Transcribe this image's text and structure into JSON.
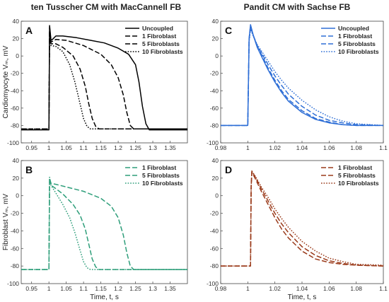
{
  "titles": {
    "left": "ten Tusscher CM with MacCannell FB",
    "right": "Pandit CM with Sachse FB"
  },
  "chart_data": [
    {
      "panel": "A",
      "type": "line",
      "ylabel": "Cardiomyocyte Vₘ, mV",
      "xlabel": "",
      "xlim": [
        0.92,
        1.4
      ],
      "ylim": [
        -100,
        40
      ],
      "xticks": [
        0.95,
        1,
        1.05,
        1.1,
        1.15,
        1.2,
        1.25,
        1.3,
        1.35
      ],
      "xtick_labels": [
        "0.95",
        "1",
        "1.05",
        "1.1",
        "1.15",
        "1.2",
        "1.25",
        "1.3",
        "1.35"
      ],
      "yticks": [
        -100,
        -80,
        -60,
        -40,
        -20,
        0,
        20,
        40
      ],
      "color": "#000000",
      "legend_position": "top-right",
      "series": [
        {
          "name": "Uncoupled",
          "dash": "solid",
          "x": [
            0.92,
            1.0,
            1.002,
            1.006,
            1.01,
            1.02,
            1.04,
            1.08,
            1.12,
            1.16,
            1.2,
            1.23,
            1.25,
            1.26,
            1.27,
            1.28,
            1.29,
            1.4
          ],
          "y": [
            -85,
            -85,
            35,
            18,
            19,
            23,
            23,
            21,
            18,
            15,
            9,
            2,
            -10,
            -30,
            -58,
            -78,
            -85,
            -85
          ]
        },
        {
          "name": "1 Fibroblast",
          "dash": "dashed",
          "x": [
            0.92,
            1.0,
            1.002,
            1.006,
            1.02,
            1.05,
            1.1,
            1.15,
            1.18,
            1.2,
            1.215,
            1.225,
            1.235,
            1.245,
            1.4
          ],
          "y": [
            -84,
            -84,
            33,
            16,
            19,
            18,
            12,
            2,
            -10,
            -25,
            -45,
            -65,
            -80,
            -84,
            -84
          ]
        },
        {
          "name": "5 Fibroblasts",
          "dash": "dashed",
          "x": [
            0.92,
            1.0,
            1.002,
            1.006,
            1.02,
            1.04,
            1.07,
            1.09,
            1.105,
            1.115,
            1.125,
            1.135,
            1.145,
            1.4
          ],
          "y": [
            -84,
            -84,
            28,
            14,
            14,
            10,
            0,
            -15,
            -35,
            -55,
            -72,
            -81,
            -84,
            -84
          ]
        },
        {
          "name": "10 Fibroblasts",
          "dash": "dotted",
          "x": [
            0.92,
            1.0,
            1.002,
            1.006,
            1.02,
            1.04,
            1.06,
            1.075,
            1.09,
            1.1,
            1.11,
            1.12,
            1.4
          ],
          "y": [
            -84,
            -84,
            26,
            12,
            11,
            5,
            -10,
            -30,
            -55,
            -72,
            -81,
            -84,
            -84
          ]
        }
      ]
    },
    {
      "panel": "B",
      "type": "line",
      "ylabel": "Fibroblast Vₘ, mV",
      "xlabel": "Time, t, s",
      "xlim": [
        0.92,
        1.4
      ],
      "ylim": [
        -100,
        40
      ],
      "xticks": [
        0.95,
        1,
        1.05,
        1.1,
        1.15,
        1.2,
        1.25,
        1.3,
        1.35
      ],
      "xtick_labels": [
        "0.95",
        "1",
        "1.05",
        "1.1",
        "1.15",
        "1.2",
        "1.25",
        "1.3",
        "1.35"
      ],
      "yticks": [
        -100,
        -80,
        -60,
        -40,
        -20,
        0,
        20,
        40
      ],
      "color": "#2e9e7a",
      "legend_position": "top-right",
      "series": [
        {
          "name": "1 Fibroblast",
          "dash": "dashed",
          "x": [
            0.92,
            1.0,
            1.002,
            1.006,
            1.02,
            1.05,
            1.1,
            1.15,
            1.18,
            1.2,
            1.215,
            1.225,
            1.235,
            1.245,
            1.4
          ],
          "y": [
            -84,
            -84,
            20,
            14,
            13,
            10,
            5,
            -3,
            -12,
            -25,
            -45,
            -65,
            -80,
            -84,
            -84
          ]
        },
        {
          "name": "5 Fibroblasts",
          "dash": "dashed",
          "x": [
            0.92,
            1.0,
            1.002,
            1.006,
            1.02,
            1.04,
            1.07,
            1.09,
            1.105,
            1.115,
            1.125,
            1.135,
            1.145,
            1.4
          ],
          "y": [
            -84,
            -84,
            20,
            12,
            8,
            2,
            -10,
            -22,
            -38,
            -55,
            -72,
            -81,
            -84,
            -84
          ]
        },
        {
          "name": "10 Fibroblasts",
          "dash": "dotted",
          "x": [
            0.92,
            1.0,
            1.002,
            1.006,
            1.02,
            1.04,
            1.06,
            1.075,
            1.09,
            1.1,
            1.11,
            1.12,
            1.4
          ],
          "y": [
            -84,
            -84,
            21,
            12,
            3,
            -10,
            -25,
            -42,
            -62,
            -75,
            -82,
            -84,
            -84
          ]
        }
      ]
    },
    {
      "panel": "C",
      "type": "line",
      "ylabel": "",
      "xlabel": "",
      "xlim": [
        0.98,
        1.1
      ],
      "ylim": [
        -100,
        40
      ],
      "xticks": [
        0.98,
        1,
        1.02,
        1.04,
        1.06,
        1.08,
        1.1
      ],
      "xtick_labels": [
        "0.98",
        "1",
        "1.02",
        "1.04",
        "1.06",
        "1.08",
        "1.1"
      ],
      "yticks": [
        -100,
        -80,
        -60,
        -40,
        -20,
        0,
        20,
        40
      ],
      "color": "#2f6fd6",
      "legend_position": "top-right",
      "series": [
        {
          "name": "Uncoupled",
          "dash": "solid",
          "x": [
            0.98,
            1.0,
            1.001,
            1.002,
            1.004,
            1.007,
            1.01,
            1.015,
            1.02,
            1.025,
            1.03,
            1.04,
            1.05,
            1.06,
            1.07,
            1.08,
            1.1
          ],
          "y": [
            -80,
            -80,
            20,
            36,
            24,
            10,
            0,
            -16,
            -30,
            -42,
            -52,
            -65,
            -73,
            -77,
            -79,
            -80,
            -80
          ]
        },
        {
          "name": "1 Fibroblast",
          "dash": "dashed",
          "x": [
            0.98,
            1.0,
            1.001,
            1.002,
            1.004,
            1.007,
            1.01,
            1.015,
            1.02,
            1.025,
            1.03,
            1.04,
            1.05,
            1.06,
            1.07,
            1.08,
            1.1
          ],
          "y": [
            -80,
            -80,
            20,
            35,
            24,
            11,
            2,
            -14,
            -28,
            -40,
            -50,
            -63,
            -72,
            -76,
            -79,
            -80,
            -80
          ]
        },
        {
          "name": "5 Fibroblasts",
          "dash": "dashed",
          "x": [
            0.98,
            1.0,
            1.001,
            1.002,
            1.004,
            1.007,
            1.01,
            1.015,
            1.02,
            1.025,
            1.03,
            1.04,
            1.05,
            1.06,
            1.07,
            1.08,
            1.1
          ],
          "y": [
            -80,
            -80,
            18,
            33,
            24,
            12,
            4,
            -10,
            -23,
            -34,
            -44,
            -58,
            -68,
            -74,
            -77,
            -79,
            -80
          ]
        },
        {
          "name": "10 Fibroblasts",
          "dash": "dotted",
          "x": [
            0.98,
            1.0,
            1.001,
            1.002,
            1.004,
            1.007,
            1.01,
            1.015,
            1.02,
            1.025,
            1.03,
            1.04,
            1.05,
            1.06,
            1.07,
            1.08,
            1.1
          ],
          "y": [
            -80,
            -80,
            16,
            31,
            23,
            13,
            6,
            -6,
            -18,
            -28,
            -37,
            -51,
            -62,
            -70,
            -75,
            -78,
            -80
          ]
        }
      ]
    },
    {
      "panel": "D",
      "type": "line",
      "ylabel": "",
      "xlabel": "Time, t, s",
      "xlim": [
        0.98,
        1.1
      ],
      "ylim": [
        -100,
        40
      ],
      "xticks": [
        0.98,
        1,
        1.02,
        1.04,
        1.06,
        1.08,
        1.1
      ],
      "xtick_labels": [
        "0.98",
        "1",
        "1.02",
        "1.04",
        "1.06",
        "1.08",
        "1.1"
      ],
      "yticks": [
        -100,
        -80,
        -60,
        -40,
        -20,
        0,
        20,
        40
      ],
      "color": "#9a3a1a",
      "legend_position": "top-right",
      "series": [
        {
          "name": "1 Fibroblast",
          "dash": "dashed",
          "x": [
            0.98,
            1.002,
            1.0025,
            1.003,
            1.006,
            1.01,
            1.015,
            1.02,
            1.025,
            1.03,
            1.04,
            1.05,
            1.06,
            1.07,
            1.08,
            1.1
          ],
          "y": [
            -80,
            -80,
            10,
            27,
            18,
            5,
            -10,
            -25,
            -38,
            -48,
            -63,
            -72,
            -76,
            -78,
            -79,
            -80
          ]
        },
        {
          "name": "5 Fibroblasts",
          "dash": "dashed",
          "x": [
            0.98,
            1.002,
            1.0025,
            1.003,
            1.006,
            1.01,
            1.015,
            1.02,
            1.025,
            1.03,
            1.04,
            1.05,
            1.06,
            1.07,
            1.08,
            1.1
          ],
          "y": [
            -80,
            -80,
            10,
            28,
            20,
            8,
            -6,
            -20,
            -32,
            -42,
            -58,
            -68,
            -74,
            -77,
            -79,
            -80
          ]
        },
        {
          "name": "10 Fibroblasts",
          "dash": "dotted",
          "x": [
            0.98,
            1.002,
            1.0025,
            1.003,
            1.006,
            1.01,
            1.015,
            1.02,
            1.025,
            1.03,
            1.04,
            1.05,
            1.06,
            1.07,
            1.08,
            1.1
          ],
          "y": [
            -80,
            -80,
            10,
            28,
            21,
            10,
            -2,
            -15,
            -26,
            -36,
            -52,
            -63,
            -71,
            -75,
            -78,
            -79
          ]
        }
      ]
    }
  ]
}
